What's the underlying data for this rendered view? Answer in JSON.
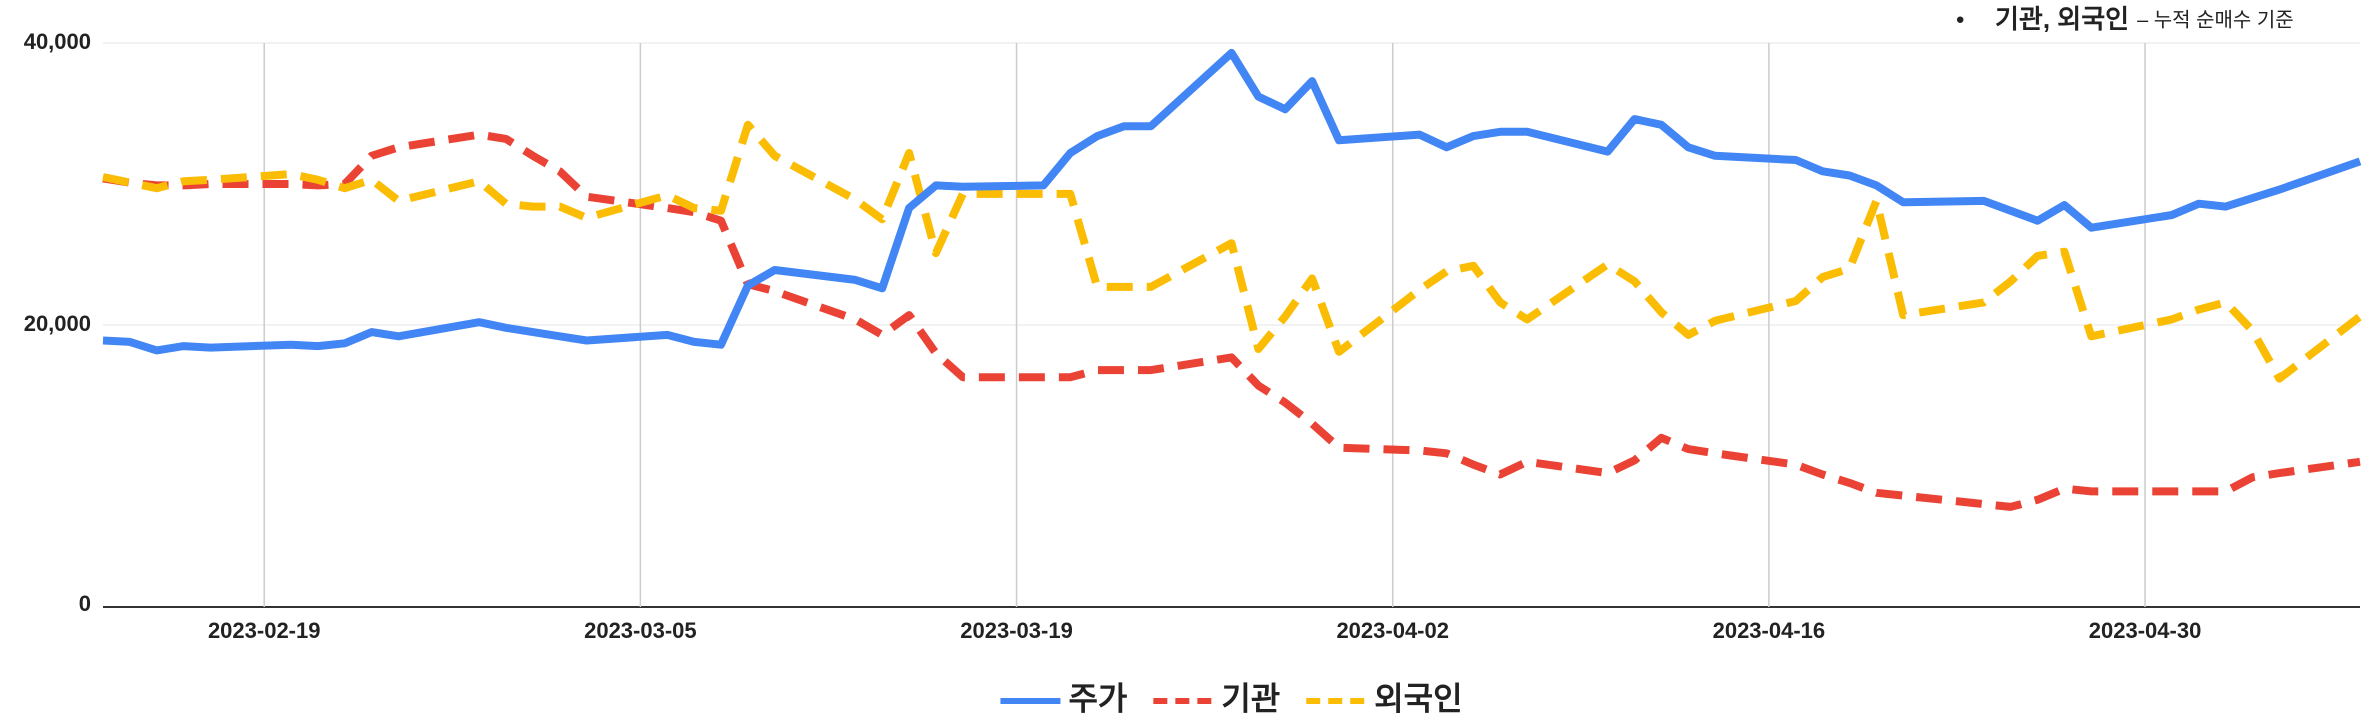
{
  "chart_data": {
    "type": "line",
    "annotation": {
      "main": "기관, 외국인",
      "sub": "– 누적 순매수 기준"
    },
    "x": [
      "2023-02-13",
      "2023-02-14",
      "2023-02-15",
      "2023-02-16",
      "2023-02-17",
      "2023-02-20",
      "2023-02-21",
      "2023-02-22",
      "2023-02-23",
      "2023-02-24",
      "2023-02-27",
      "2023-02-28",
      "2023-03-01",
      "2023-03-02",
      "2023-03-03",
      "2023-03-06",
      "2023-03-07",
      "2023-03-08",
      "2023-03-09",
      "2023-03-10",
      "2023-03-13",
      "2023-03-14",
      "2023-03-15",
      "2023-03-16",
      "2023-03-17",
      "2023-03-20",
      "2023-03-21",
      "2023-03-22",
      "2023-03-23",
      "2023-03-24",
      "2023-03-27",
      "2023-03-28",
      "2023-03-29",
      "2023-03-30",
      "2023-03-31",
      "2023-04-03",
      "2023-04-04",
      "2023-04-05",
      "2023-04-06",
      "2023-04-07",
      "2023-04-10",
      "2023-04-11",
      "2023-04-12",
      "2023-04-13",
      "2023-04-14",
      "2023-04-17",
      "2023-04-18",
      "2023-04-19",
      "2023-04-20",
      "2023-04-21",
      "2023-04-24",
      "2023-04-25",
      "2023-04-26",
      "2023-04-27",
      "2023-04-28",
      "2023-05-01",
      "2023-05-02",
      "2023-05-03",
      "2023-05-04",
      "2023-05-05",
      "2023-05-08"
    ],
    "series": [
      {
        "name": "주가",
        "color": "#4285f4",
        "values": [
          18900,
          18800,
          18200,
          18500,
          18400,
          18600,
          18500,
          18700,
          19500,
          19200,
          20200,
          19800,
          19500,
          19200,
          18900,
          19300,
          18800,
          18600,
          22800,
          23900,
          23200,
          22600,
          28300,
          29900,
          29800,
          29900,
          32200,
          33400,
          34100,
          34100,
          39300,
          36200,
          35300,
          37300,
          33100,
          33500,
          32600,
          33400,
          33700,
          33700,
          32300,
          34600,
          34200,
          32600,
          32000,
          31700,
          30900,
          30600,
          29900,
          28700,
          28800,
          28100,
          27400,
          28500,
          26900,
          27800,
          28600,
          28400,
          29000,
          29600,
          31600
        ]
      },
      {
        "name": "기관",
        "color": "#ea4335",
        "values": [
          30400,
          30100,
          29900,
          29900,
          30000,
          30000,
          29900,
          30000,
          32000,
          32600,
          33500,
          33200,
          32000,
          30900,
          29100,
          28300,
          28000,
          27400,
          22900,
          22400,
          20400,
          19300,
          20700,
          18000,
          16300,
          16300,
          16300,
          16800,
          16800,
          16800,
          17700,
          15700,
          14500,
          13000,
          11300,
          11100,
          10900,
          10100,
          9400,
          10300,
          9500,
          10400,
          12000,
          11200,
          10900,
          10100,
          9400,
          8800,
          8100,
          7900,
          7300,
          7100,
          7600,
          8400,
          8200,
          8200,
          8200,
          8200,
          9200,
          9500,
          10300
        ]
      },
      {
        "name": "외국인",
        "color": "#fbbc04",
        "values": [
          30500,
          30100,
          29700,
          30200,
          30300,
          30700,
          30300,
          29700,
          30300,
          28800,
          30200,
          28600,
          28400,
          28400,
          27600,
          29200,
          28300,
          28100,
          34200,
          32000,
          28900,
          27500,
          32200,
          25100,
          29300,
          29300,
          29300,
          22700,
          22700,
          22700,
          25800,
          18300,
          20600,
          23300,
          18100,
          22500,
          23800,
          24200,
          21600,
          20400,
          24300,
          23100,
          20900,
          19300,
          20300,
          21700,
          23400,
          24000,
          28800,
          20700,
          21600,
          23100,
          24900,
          25200,
          19200,
          20400,
          21100,
          21600,
          19600,
          16200,
          20600
        ]
      }
    ],
    "xlim": [
      "2023-02-13",
      "2023-05-08"
    ],
    "xticks": [
      "2023-02-19",
      "2023-03-05",
      "2023-03-19",
      "2023-04-02",
      "2023-04-16",
      "2023-04-30"
    ],
    "ylim": [
      0,
      40000
    ],
    "yticks": [
      0,
      {
        "value": 20000,
        "label": "20,000"
      },
      {
        "value": 40000,
        "label": "40,000"
      }
    ],
    "grid": true,
    "legend": "bottom"
  }
}
